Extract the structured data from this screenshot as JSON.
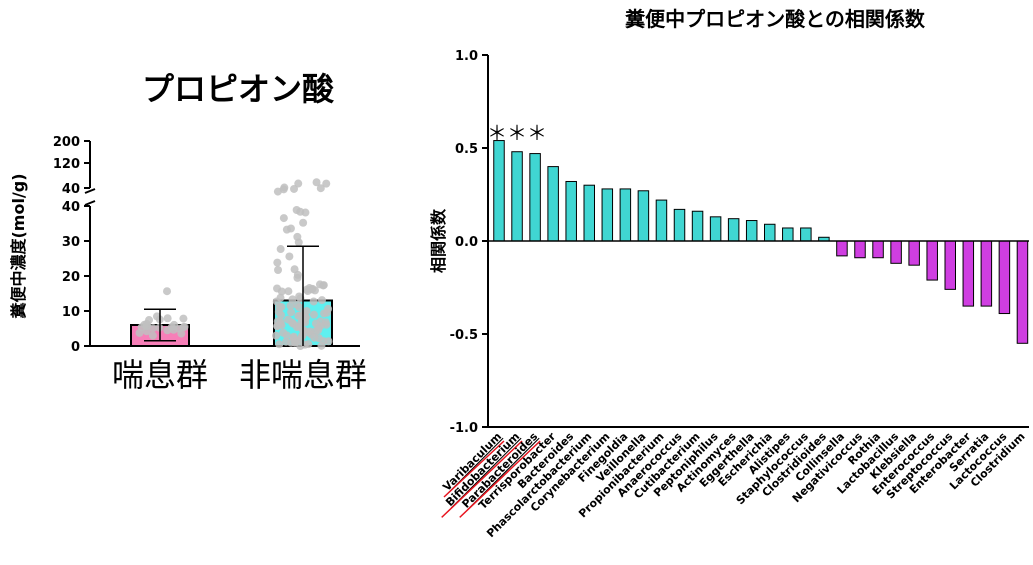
{
  "chart_data": [
    {
      "type": "bar",
      "title": "プロピオン酸",
      "ylabel": "糞便中濃度(mol/g)",
      "categories": [
        "喘息群",
        "非喘息群"
      ],
      "values": [
        6,
        13
      ],
      "error_upper": [
        10.5,
        28.5
      ],
      "error_lower": [
        1.5,
        0
      ],
      "bar_colors": [
        "#f77fb8",
        "#5ef0f0"
      ],
      "y_axis_broken": true,
      "y_segment_lower": {
        "range": [
          0,
          40
        ],
        "ticks": [
          "0",
          "10",
          "20",
          "30",
          "40"
        ]
      },
      "y_segment_upper": {
        "ticks": [
          "40",
          "120",
          "200"
        ]
      },
      "point_color": "#c0c0c0",
      "grid": false
    },
    {
      "type": "bar",
      "title": "糞便中プロピオン酸との相関係数",
      "xlabel": "",
      "ylabel": "相関係数",
      "ylim": [
        -1.0,
        1.0
      ],
      "y_ticks": [
        "1.0",
        "0.5",
        "0.0",
        "-0.5",
        "-1.0"
      ],
      "annotation": "＊＊＊",
      "categories": [
        "Varibaculum",
        "Bifidobacterium",
        "Parabacteroides",
        "Terrisporobacter",
        "Bacteroides",
        "Phascolarctobacterium",
        "Corynebacterium",
        "Finegoldia",
        "Veillonella",
        "Propionibacterium",
        "Anaerococcus",
        "Cutibacterium",
        "Peptoniphilus",
        "Actinomyces",
        "Eggerthella",
        "Escherichia",
        "Alistipes",
        "Staphylococcus",
        "Clostridioides",
        "Collinsella",
        "Negativicoccus",
        "Rothia",
        "Lactobacillus",
        "Klebsiella",
        "Enterococcus",
        "Streptococcus",
        "Enterobacter",
        "Serratia",
        "Lactococcus",
        "Clostridium"
      ],
      "values": [
        0.54,
        0.48,
        0.47,
        0.4,
        0.32,
        0.3,
        0.28,
        0.28,
        0.27,
        0.22,
        0.17,
        0.16,
        0.13,
        0.12,
        0.11,
        0.09,
        0.07,
        0.07,
        0.02,
        -0.08,
        -0.09,
        -0.09,
        -0.12,
        -0.13,
        -0.21,
        -0.26,
        -0.35,
        -0.35,
        -0.39,
        -0.55
      ],
      "underlined_categories": [
        "Varibaculum",
        "Bifidobacterium",
        "Parabacteroides"
      ],
      "underline_color": "#e8141e",
      "positive_color": "#40d6d2",
      "negative_color": "#cf3ee1",
      "grid": false
    }
  ]
}
